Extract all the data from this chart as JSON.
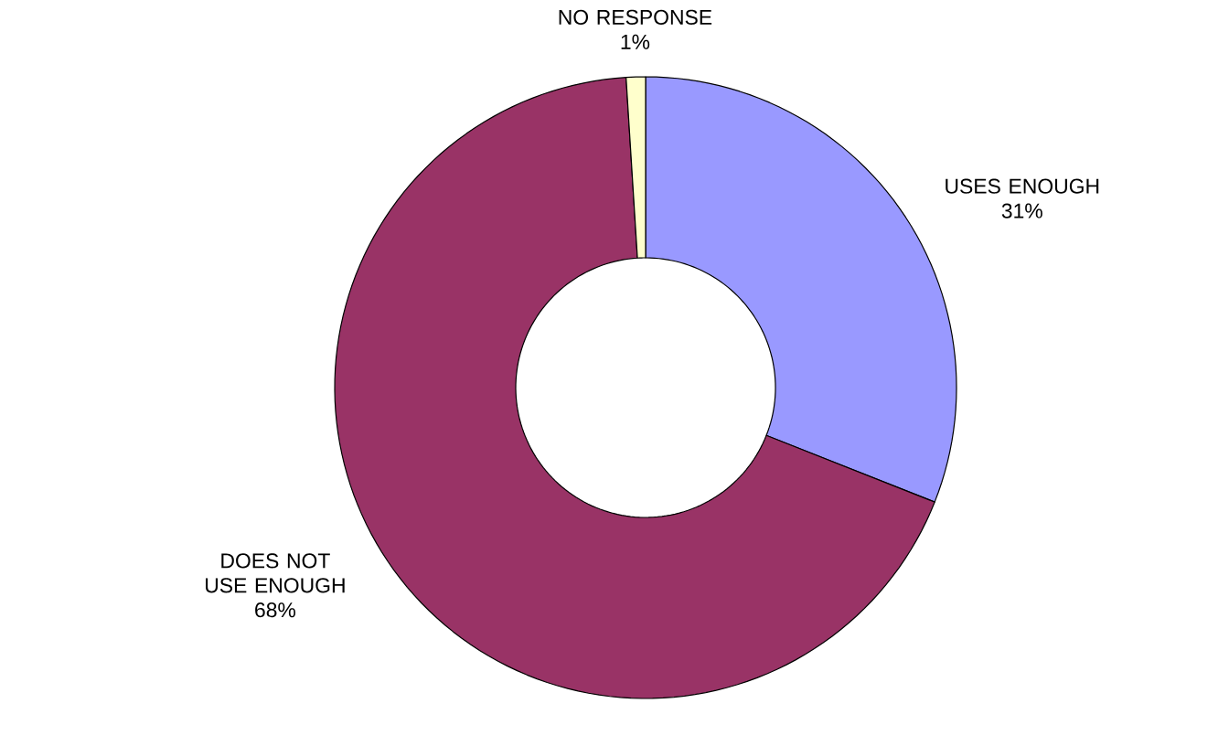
{
  "chart_data": {
    "type": "donut",
    "categories": [
      "USES ENOUGH",
      "DOES NOT USE ENOUGH",
      "NO RESPONSE"
    ],
    "values": [
      31,
      68,
      1
    ],
    "colors": [
      "#9999ff",
      "#993366",
      "#ffffcc"
    ],
    "value_labels": [
      "31%",
      "68%",
      "1%"
    ]
  }
}
